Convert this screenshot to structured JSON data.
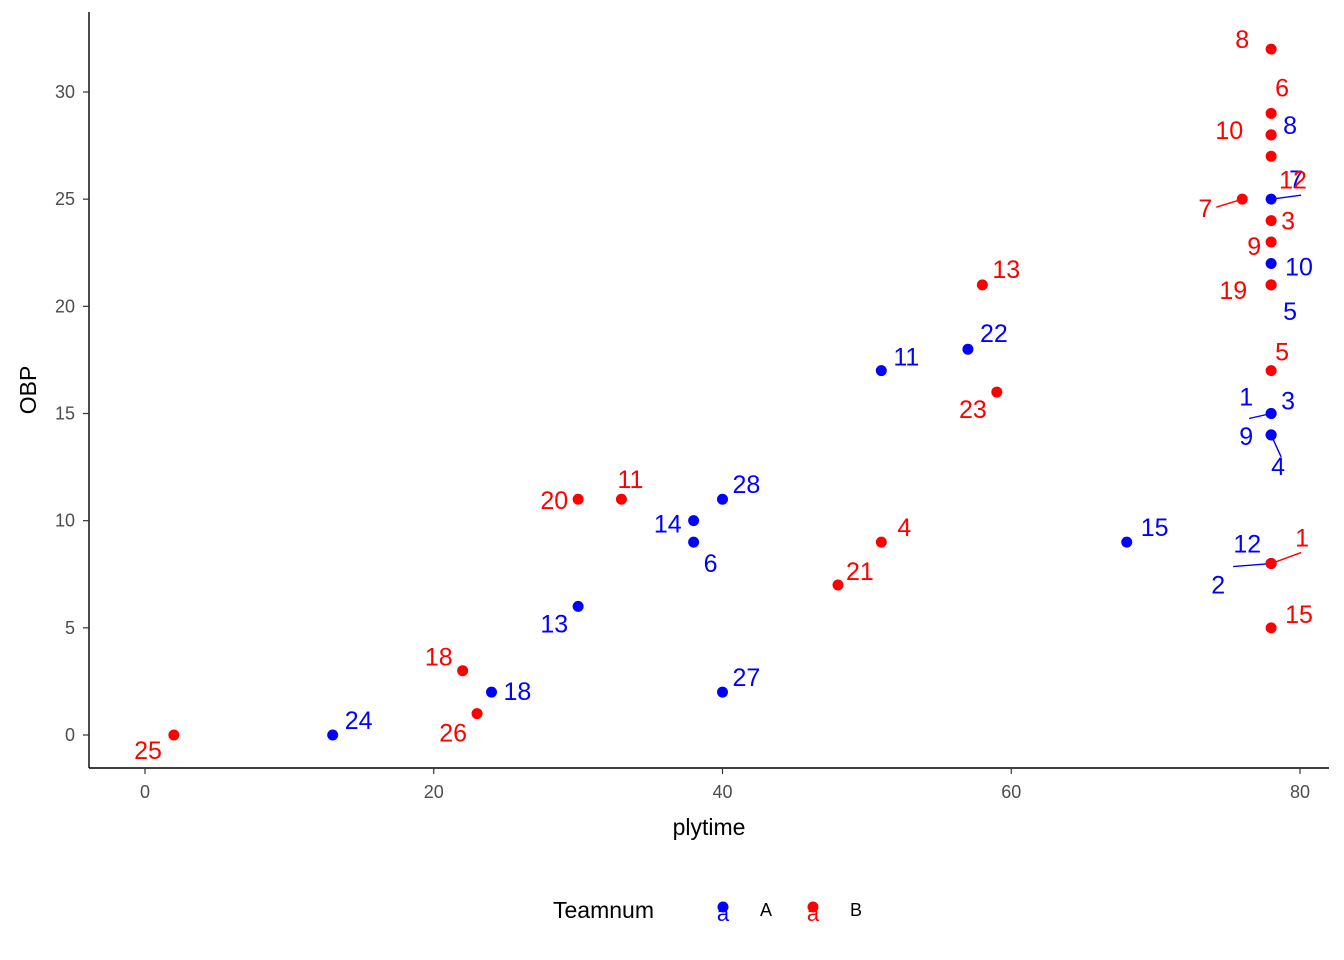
{
  "chart_data": {
    "type": "scatter",
    "title": "",
    "xlabel": "plytime",
    "ylabel": "OBP",
    "xlim": [
      -4,
      81
    ],
    "ylim": [
      -1.5,
      33.5
    ],
    "x_ticks": [
      0,
      20,
      40,
      60,
      80
    ],
    "y_ticks": [
      0,
      5,
      10,
      15,
      20,
      25,
      30
    ],
    "grid": false,
    "legend": {
      "title": "Teamnum",
      "position": "bottom",
      "key_glyph": "a",
      "entries": [
        {
          "label": "A",
          "color": "#0000FF"
        },
        {
          "label": "B",
          "color": "#FF0000"
        }
      ]
    },
    "series": [
      {
        "name": "A",
        "color": "#0000FF",
        "points": [
          {
            "x": 13,
            "y": 0,
            "label": "24"
          },
          {
            "x": 24,
            "y": 2,
            "label": "18"
          },
          {
            "x": 30,
            "y": 6,
            "label": "13"
          },
          {
            "x": 38,
            "y": 10,
            "label": "14"
          },
          {
            "x": 38,
            "y": 9,
            "label": "6"
          },
          {
            "x": 40,
            "y": 11,
            "label": "28"
          },
          {
            "x": 40,
            "y": 2,
            "label": "27"
          },
          {
            "x": 51,
            "y": 17,
            "label": "11"
          },
          {
            "x": 57,
            "y": 18,
            "label": "22"
          },
          {
            "x": 68,
            "y": 9,
            "label": "15"
          },
          {
            "x": 78,
            "y": 28,
            "label": "8"
          },
          {
            "x": 78,
            "y": 25,
            "label": "7"
          },
          {
            "x": 78,
            "y": 22,
            "label": "10"
          },
          {
            "x": 78,
            "y": 21,
            "label": "5"
          },
          {
            "x": 78,
            "y": 15,
            "label": "1"
          },
          {
            "x": 78,
            "y": 15,
            "label": "3"
          },
          {
            "x": 78,
            "y": 14,
            "label": "9"
          },
          {
            "x": 78,
            "y": 14,
            "label": "4"
          },
          {
            "x": 78,
            "y": 8,
            "label": "12"
          },
          {
            "x": 78,
            "y": 8,
            "label": "2"
          }
        ]
      },
      {
        "name": "B",
        "color": "#FF0000",
        "points": [
          {
            "x": 2,
            "y": 0,
            "label": "25"
          },
          {
            "x": 22,
            "y": 3,
            "label": "18"
          },
          {
            "x": 23,
            "y": 1,
            "label": "26"
          },
          {
            "x": 30,
            "y": 11,
            "label": "20"
          },
          {
            "x": 33,
            "y": 11,
            "label": "11"
          },
          {
            "x": 48,
            "y": 7,
            "label": "21"
          },
          {
            "x": 51,
            "y": 9,
            "label": "4"
          },
          {
            "x": 58,
            "y": 21,
            "label": "13"
          },
          {
            "x": 59,
            "y": 16,
            "label": "23"
          },
          {
            "x": 76,
            "y": 25,
            "label": "7"
          },
          {
            "x": 78,
            "y": 32,
            "label": "8"
          },
          {
            "x": 78,
            "y": 29,
            "label": "6"
          },
          {
            "x": 78,
            "y": 28,
            "label": "10"
          },
          {
            "x": 78,
            "y": 27,
            "label": "12"
          },
          {
            "x": 78,
            "y": 24,
            "label": "3"
          },
          {
            "x": 78,
            "y": 23,
            "label": "9"
          },
          {
            "x": 78,
            "y": 21,
            "label": "19"
          },
          {
            "x": 78,
            "y": 17,
            "label": "5"
          },
          {
            "x": 78,
            "y": 8,
            "label": "1"
          },
          {
            "x": 78,
            "y": 5,
            "label": "15"
          }
        ]
      }
    ]
  }
}
